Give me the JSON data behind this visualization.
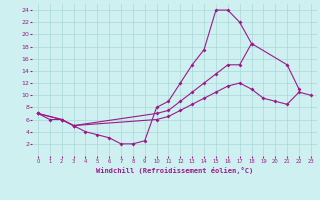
{
  "background_color": "#cff0f0",
  "grid_color": "#aad8d8",
  "line_color": "#9b1a8a",
  "xlabel": "Windchill (Refroidissement éolien,°C)",
  "xlim": [
    -0.5,
    23.5
  ],
  "ylim": [
    0,
    25
  ],
  "xticks": [
    0,
    1,
    2,
    3,
    4,
    5,
    6,
    7,
    8,
    9,
    10,
    11,
    12,
    13,
    14,
    15,
    16,
    17,
    18,
    19,
    20,
    21,
    22,
    23
  ],
  "yticks": [
    2,
    4,
    6,
    8,
    10,
    12,
    14,
    16,
    18,
    20,
    22,
    24
  ],
  "line1_x": [
    0,
    1,
    2,
    3,
    4,
    5,
    6,
    7,
    8,
    9,
    10,
    11,
    12,
    13,
    14,
    15,
    16,
    17,
    18
  ],
  "line1_y": [
    7,
    6,
    6,
    5,
    4,
    3.5,
    3,
    2,
    2,
    2.5,
    8,
    9,
    12,
    15,
    17.5,
    24,
    24,
    22,
    18.5
  ],
  "line2_x": [
    0,
    2,
    3,
    10,
    11,
    12,
    13,
    14,
    15,
    16,
    17,
    18,
    21,
    22
  ],
  "line2_y": [
    7,
    6,
    5,
    7,
    7.5,
    9,
    10.5,
    12,
    13.5,
    15,
    15,
    18.5,
    15,
    11
  ],
  "line3_x": [
    0,
    2,
    3,
    10,
    11,
    12,
    13,
    14,
    15,
    16,
    17,
    18,
    19,
    20,
    21,
    22,
    23
  ],
  "line3_y": [
    7,
    6,
    5,
    6,
    6.5,
    7.5,
    8.5,
    9.5,
    10.5,
    11.5,
    12,
    11,
    9.5,
    9,
    8.5,
    10.5,
    10
  ]
}
